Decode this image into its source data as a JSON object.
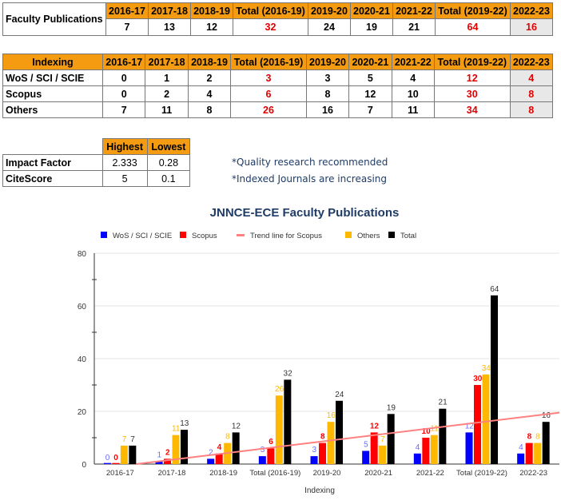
{
  "faculty_table": {
    "label": "Faculty Publications",
    "headers": [
      "2016-17",
      "2017-18",
      "2018-19",
      "Total (2016-19)",
      "2019-20",
      "2020-21",
      "2021-22",
      "Total (2019-22)",
      "2022-23"
    ],
    "values": [
      "7",
      "13",
      "12",
      "32",
      "24",
      "19",
      "21",
      "64",
      "16"
    ]
  },
  "indexing_table": {
    "headers": [
      "Indexing",
      "2016-17",
      "2017-18",
      "2018-19",
      "Total (2016-19)",
      "2019-20",
      "2020-21",
      "2021-22",
      "Total (2019-22)",
      "2022-23"
    ],
    "rows": [
      [
        "WoS / SCI / SCIE",
        "0",
        "1",
        "2",
        "3",
        "3",
        "5",
        "4",
        "12",
        "4"
      ],
      [
        "Scopus",
        "0",
        "2",
        "4",
        "6",
        "8",
        "12",
        "10",
        "30",
        "8"
      ],
      [
        "Others",
        "7",
        "11",
        "8",
        "26",
        "16",
        "7",
        "11",
        "34",
        "8"
      ]
    ]
  },
  "metrics_table": {
    "headers": [
      "",
      "Highest",
      "Lowest"
    ],
    "rows": [
      [
        "Impact Factor",
        "2.333",
        "0.28"
      ],
      [
        "CiteScore",
        "5",
        "0.1"
      ]
    ]
  },
  "notes": [
    "*Quality research recommended",
    "*Indexed Journals are increasing"
  ],
  "chart_data": {
    "type": "bar",
    "title": "JNNCE-ECE Faculty Publications",
    "xlabel": "Indexing",
    "ylabel": "",
    "ylim": [
      0,
      80
    ],
    "yticks": [
      0,
      20,
      40,
      60,
      80
    ],
    "grid": true,
    "legend": "top",
    "categories": [
      "2016-17",
      "2017-18",
      "2018-19",
      "Total (2016-19)",
      "2019-20",
      "2020-21",
      "2021-22",
      "Total (2019-22)",
      "2022-23"
    ],
    "series": [
      {
        "name": "WoS / SCI / SCIE",
        "color": "#0000ff",
        "values": [
          0,
          1,
          2,
          3,
          3,
          5,
          4,
          12,
          4
        ]
      },
      {
        "name": "Scopus",
        "color": "#ff0000",
        "values": [
          0,
          2,
          4,
          6,
          8,
          12,
          10,
          30,
          8
        ]
      },
      {
        "name": "Others",
        "color": "#ffb800",
        "values": [
          7,
          11,
          8,
          26,
          16,
          7,
          11,
          34,
          8
        ]
      },
      {
        "name": "Total",
        "color": "#000000",
        "values": [
          7,
          13,
          12,
          32,
          24,
          19,
          21,
          64,
          16
        ]
      }
    ],
    "trendline": {
      "name": "Trend line for Scopus",
      "color": "#ff8080",
      "start": 0,
      "end": 19.5
    },
    "legend_order": [
      "WoS / SCI / SCIE",
      "Scopus",
      "Trend line for Scopus",
      "Others",
      "Total"
    ]
  }
}
